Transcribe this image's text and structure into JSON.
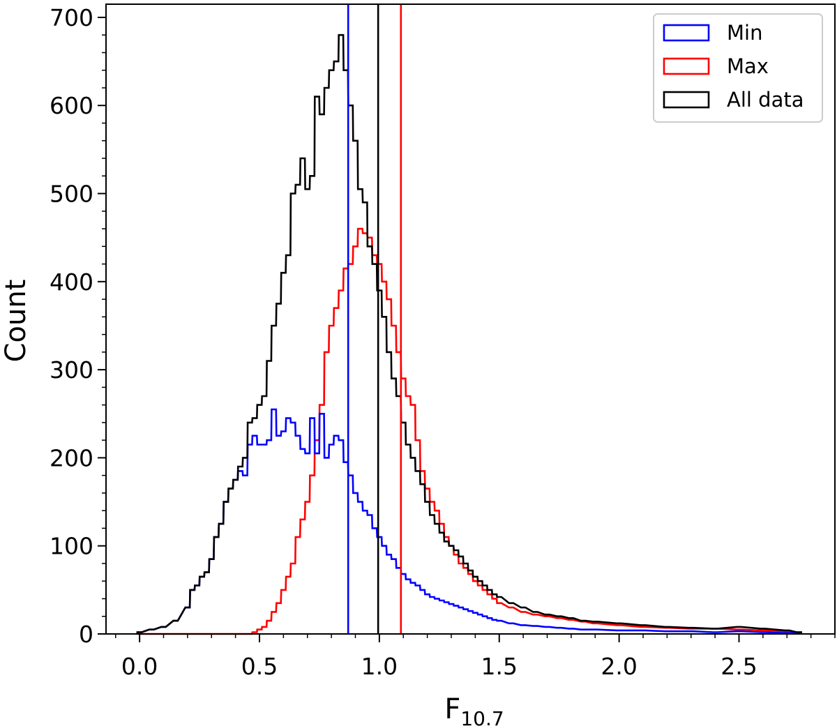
{
  "chart_data": {
    "type": "histogram",
    "title": "",
    "xlabel": {
      "main": "F",
      "subscript": "10.7"
    },
    "ylabel": "Count",
    "xlim": [
      -0.14,
      2.9
    ],
    "ylim": [
      0,
      715
    ],
    "xticks": [
      0.0,
      0.5,
      1.0,
      1.5,
      2.0,
      2.5
    ],
    "xtick_labels": [
      "0.0",
      "0.5",
      "1.0",
      "1.5",
      "2.0",
      "2.5"
    ],
    "yticks": [
      0,
      100,
      200,
      300,
      400,
      500,
      600,
      700
    ],
    "ytick_labels": [
      "0",
      "100",
      "200",
      "300",
      "400",
      "500",
      "600",
      "700"
    ],
    "grid": false,
    "legend_position": "top-right",
    "legend": [
      {
        "name": "Min",
        "color": "#0000ff"
      },
      {
        "name": "Max",
        "color": "#ff0000"
      },
      {
        "name": "All data",
        "color": "#000000"
      }
    ],
    "bin_width": 0.0185,
    "series": [
      {
        "name": "All data",
        "color": "#000000",
        "x": [
          0.0,
          0.05,
          0.1,
          0.15,
          0.2,
          0.22,
          0.24,
          0.26,
          0.28,
          0.3,
          0.32,
          0.34,
          0.36,
          0.38,
          0.4,
          0.42,
          0.44,
          0.46,
          0.48,
          0.5,
          0.52,
          0.54,
          0.56,
          0.58,
          0.6,
          0.62,
          0.64,
          0.66,
          0.68,
          0.7,
          0.72,
          0.74,
          0.76,
          0.78,
          0.8,
          0.82,
          0.84,
          0.86,
          0.88,
          0.9,
          0.92,
          0.94,
          0.96,
          0.98,
          1.0,
          1.02,
          1.04,
          1.06,
          1.08,
          1.1,
          1.12,
          1.14,
          1.16,
          1.18,
          1.2,
          1.22,
          1.24,
          1.26,
          1.28,
          1.3,
          1.32,
          1.34,
          1.36,
          1.38,
          1.4,
          1.42,
          1.44,
          1.46,
          1.48,
          1.5,
          1.55,
          1.6,
          1.65,
          1.7,
          1.75,
          1.8,
          1.85,
          1.9,
          2.0,
          2.1,
          2.2,
          2.3,
          2.4,
          2.5,
          2.6,
          2.7,
          2.75
        ],
        "y": [
          2,
          5,
          8,
          15,
          30,
          50,
          55,
          65,
          70,
          85,
          110,
          125,
          150,
          165,
          175,
          190,
          200,
          240,
          245,
          260,
          270,
          310,
          350,
          375,
          410,
          430,
          500,
          510,
          540,
          505,
          520,
          610,
          590,
          620,
          640,
          650,
          680,
          640,
          600,
          560,
          505,
          490,
          440,
          420,
          390,
          360,
          320,
          290,
          270,
          240,
          215,
          200,
          185,
          170,
          150,
          135,
          125,
          115,
          105,
          100,
          95,
          88,
          80,
          72,
          65,
          60,
          55,
          50,
          45,
          42,
          35,
          30,
          25,
          22,
          20,
          18,
          15,
          14,
          12,
          10,
          8,
          7,
          6,
          8,
          6,
          4,
          2
        ]
      },
      {
        "name": "Min",
        "color": "#0000ff",
        "x": [
          0.0,
          0.05,
          0.1,
          0.15,
          0.2,
          0.22,
          0.24,
          0.26,
          0.28,
          0.3,
          0.32,
          0.34,
          0.36,
          0.38,
          0.4,
          0.42,
          0.44,
          0.46,
          0.48,
          0.5,
          0.52,
          0.54,
          0.56,
          0.58,
          0.6,
          0.62,
          0.64,
          0.66,
          0.68,
          0.7,
          0.72,
          0.74,
          0.76,
          0.78,
          0.8,
          0.82,
          0.84,
          0.86,
          0.88,
          0.9,
          0.92,
          0.94,
          0.96,
          0.98,
          1.0,
          1.02,
          1.04,
          1.06,
          1.08,
          1.1,
          1.12,
          1.14,
          1.16,
          1.18,
          1.2,
          1.22,
          1.24,
          1.26,
          1.28,
          1.3,
          1.32,
          1.34,
          1.36,
          1.38,
          1.4,
          1.42,
          1.44,
          1.46,
          1.48,
          1.5,
          1.55,
          1.6,
          1.65,
          1.7,
          1.75,
          1.8,
          1.85,
          1.9,
          2.0,
          2.1,
          2.2,
          2.3,
          2.4,
          2.5,
          2.6,
          2.7,
          2.75
        ],
        "y": [
          2,
          5,
          8,
          15,
          30,
          50,
          55,
          65,
          70,
          85,
          110,
          125,
          150,
          165,
          175,
          185,
          180,
          215,
          225,
          215,
          215,
          220,
          255,
          225,
          230,
          245,
          240,
          225,
          210,
          205,
          245,
          205,
          250,
          200,
          215,
          225,
          220,
          195,
          180,
          160,
          150,
          140,
          135,
          120,
          110,
          100,
          90,
          85,
          75,
          68,
          62,
          58,
          55,
          50,
          45,
          42,
          40,
          38,
          36,
          34,
          32,
          30,
          28,
          26,
          24,
          22,
          20,
          18,
          16,
          15,
          12,
          10,
          9,
          8,
          7,
          6,
          5,
          5,
          4,
          4,
          3,
          3,
          2,
          3,
          2,
          1,
          1
        ]
      },
      {
        "name": "Max",
        "color": "#ff0000",
        "x": [
          0.0,
          0.05,
          0.1,
          0.15,
          0.2,
          0.22,
          0.24,
          0.26,
          0.28,
          0.3,
          0.32,
          0.34,
          0.36,
          0.38,
          0.4,
          0.42,
          0.44,
          0.46,
          0.48,
          0.5,
          0.52,
          0.54,
          0.56,
          0.58,
          0.6,
          0.62,
          0.64,
          0.66,
          0.68,
          0.7,
          0.72,
          0.74,
          0.76,
          0.78,
          0.8,
          0.82,
          0.84,
          0.86,
          0.88,
          0.9,
          0.92,
          0.94,
          0.96,
          0.98,
          1.0,
          1.02,
          1.04,
          1.06,
          1.08,
          1.1,
          1.12,
          1.14,
          1.16,
          1.18,
          1.2,
          1.22,
          1.24,
          1.26,
          1.28,
          1.3,
          1.32,
          1.34,
          1.36,
          1.38,
          1.4,
          1.42,
          1.44,
          1.46,
          1.48,
          1.5,
          1.55,
          1.6,
          1.65,
          1.7,
          1.75,
          1.8,
          1.85,
          1.9,
          2.0,
          2.1,
          2.2,
          2.3,
          2.4,
          2.5,
          2.6,
          2.7,
          2.75
        ],
        "y": [
          0,
          0,
          0,
          0,
          0,
          0,
          0,
          0,
          0,
          0,
          0,
          0,
          0,
          0,
          0,
          0,
          0,
          0,
          2,
          5,
          8,
          15,
          25,
          35,
          50,
          65,
          80,
          110,
          130,
          150,
          180,
          220,
          260,
          320,
          350,
          370,
          390,
          415,
          420,
          440,
          460,
          455,
          450,
          430,
          420,
          400,
          380,
          350,
          320,
          290,
          270,
          260,
          220,
          185,
          165,
          150,
          140,
          125,
          110,
          100,
          90,
          80,
          75,
          68,
          60,
          55,
          50,
          45,
          40,
          35,
          30,
          25,
          22,
          20,
          18,
          16,
          14,
          12,
          10,
          8,
          7,
          6,
          6,
          5,
          4,
          3,
          2
        ]
      }
    ],
    "vlines": [
      {
        "name": "Min reference",
        "x": 0.87,
        "color": "#0000ff"
      },
      {
        "name": "All data reference",
        "x": 0.995,
        "color": "#000000"
      },
      {
        "name": "Max reference",
        "x": 1.09,
        "color": "#ff0000"
      }
    ]
  }
}
